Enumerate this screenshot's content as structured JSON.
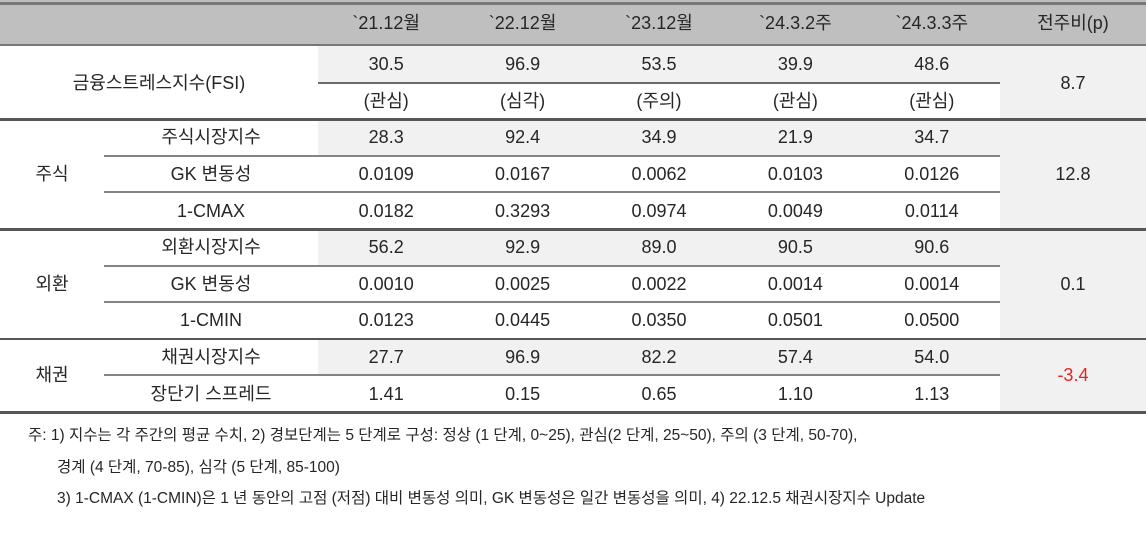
{
  "table": {
    "column_headers": [
      "`21.12월",
      "`22.12월",
      "`23.12월",
      "`24.3.2주",
      "`24.3.3주",
      "전주비(p)"
    ],
    "fsi_row": {
      "label": "금융스트레스지수(FSI)",
      "values": [
        "30.5",
        "96.9",
        "53.5",
        "39.9",
        "48.6"
      ],
      "alert_levels": [
        "(관심)",
        "(심각)",
        "(주의)",
        "(관심)",
        "(관심)"
      ],
      "wow_change": "8.7"
    },
    "sections": [
      {
        "group_label": "주식",
        "wow_change": "12.8",
        "rows": [
          {
            "label": "주식시장지수",
            "shaded": true,
            "values": [
              "28.3",
              "92.4",
              "34.9",
              "21.9",
              "34.7"
            ]
          },
          {
            "label": "GK 변동성",
            "shaded": false,
            "values": [
              "0.0109",
              "0.0167",
              "0.0062",
              "0.0103",
              "0.0126"
            ]
          },
          {
            "label": "1-CMAX",
            "shaded": false,
            "values": [
              "0.0182",
              "0.3293",
              "0.0974",
              "0.0049",
              "0.0114"
            ]
          }
        ]
      },
      {
        "group_label": "외환",
        "wow_change": "0.1",
        "rows": [
          {
            "label": "외환시장지수",
            "shaded": true,
            "values": [
              "56.2",
              "92.9",
              "89.0",
              "90.5",
              "90.6"
            ]
          },
          {
            "label": "GK 변동성",
            "shaded": false,
            "values": [
              "0.0010",
              "0.0025",
              "0.0022",
              "0.0014",
              "0.0014"
            ]
          },
          {
            "label": "1-CMIN",
            "shaded": false,
            "values": [
              "0.0123",
              "0.0445",
              "0.0350",
              "0.0501",
              "0.0500"
            ]
          }
        ]
      },
      {
        "group_label": "채권",
        "wow_change": "-3.4",
        "rows": [
          {
            "label": "채권시장지수",
            "shaded": true,
            "values": [
              "27.7",
              "96.9",
              "82.2",
              "57.4",
              "54.0"
            ]
          },
          {
            "label": "장단기 스프레드",
            "shaded": false,
            "values": [
              "1.41",
              "0.15",
              "0.65",
              "1.10",
              "1.13"
            ]
          }
        ]
      }
    ]
  },
  "notes": {
    "lines": [
      "주: 1) 지수는 각 주간의 평균 수치, 2) 경보단계는 5 단계로 구성: 정상 (1 단계, 0~25), 관심(2 단계, 25~50), 주의 (3 단계, 50-70),",
      "경계 (4 단계, 70-85), 심각 (5 단계, 85-100)",
      "3) 1-CMAX (1-CMIN)은 1 년 동안의 고점 (저점) 대비 변동성 의미, GK 변동성은 일간 변동성을 의미, 4) 22.12.5 채권시장지수 Update"
    ]
  },
  "colors": {
    "header_bg": "#bfbfbf",
    "shaded_cell_bg": "#f1f1f1",
    "text": "#262626",
    "negative_value": "#e8241f",
    "border_major": "#565656",
    "border_minor": "#848484",
    "border_mid": "#6a6a6a",
    "border_edge": "#787878"
  }
}
